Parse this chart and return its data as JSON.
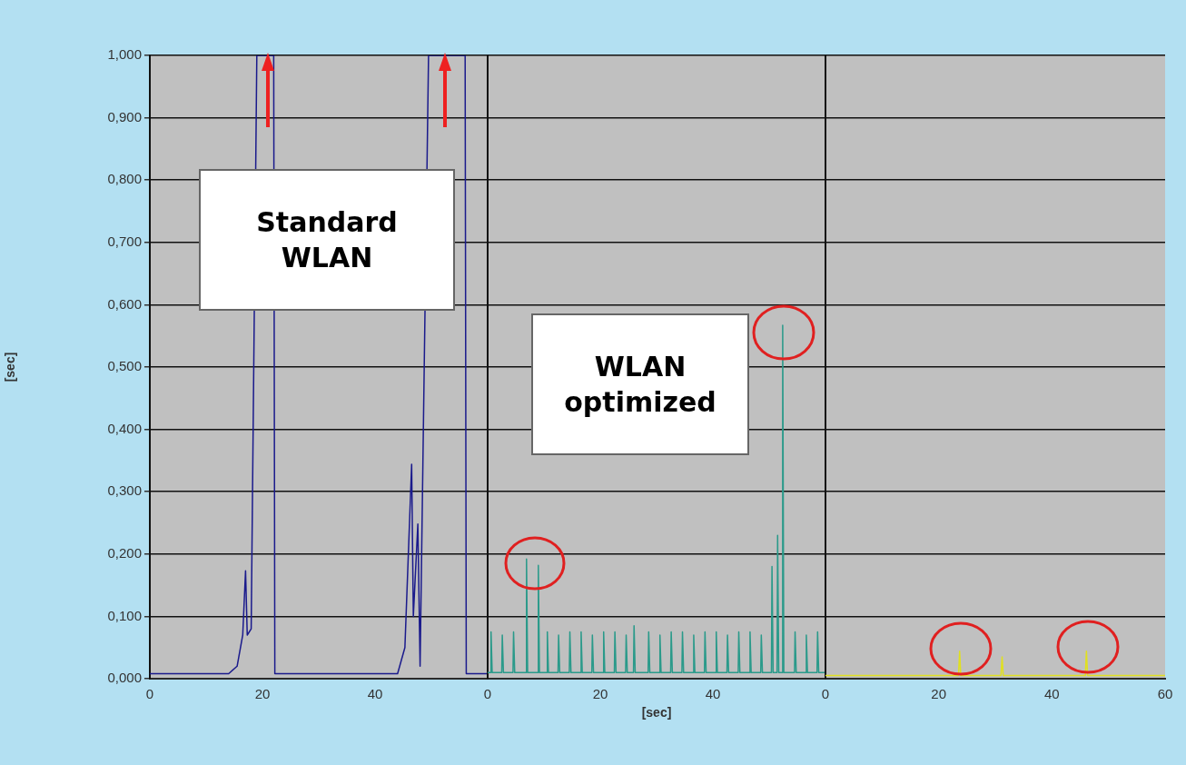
{
  "chart_data": [
    {
      "type": "line",
      "ylabel": "[sec]",
      "annotations": [
        "Standard WLAN"
      ],
      "series": [
        {
          "color": "#1a1a8c",
          "x": [
            0,
            14,
            15.5,
            16.5,
            17,
            17.3,
            18,
            19,
            22,
            22.2,
            44,
            45.3,
            46.2,
            46.5,
            46.8,
            47.6,
            48,
            49.5,
            56,
            56.2,
            60
          ],
          "values": [
            0.008,
            0.008,
            0.02,
            0.07,
            0.173,
            0.07,
            0.08,
            1,
            1,
            0.008,
            0.008,
            0.05,
            0.27,
            0.344,
            0.1,
            0.248,
            0.02,
            1,
            1,
            0.008,
            0.008
          ]
        }
      ],
      "xlim": [
        0,
        60
      ],
      "xticks": [
        0,
        20,
        40
      ],
      "ylim": [
        0,
        1
      ],
      "yticks": [
        {
          "value": 0,
          "label": "0,000"
        },
        {
          "value": 0.1,
          "label": "0,100"
        },
        {
          "value": 0.2,
          "label": "0,200"
        },
        {
          "value": 0.3,
          "label": "0,300"
        },
        {
          "value": 0.4,
          "label": "0,400"
        },
        {
          "value": 0.5,
          "label": "0,500"
        },
        {
          "value": 0.6,
          "label": "0,600"
        },
        {
          "value": 0.7,
          "label": "0,700"
        },
        {
          "value": 0.8,
          "label": "0,800"
        },
        {
          "value": 0.9,
          "label": "0,900"
        },
        {
          "value": 1,
          "label": "1,000"
        }
      ],
      "grid": "y"
    },
    {
      "type": "line",
      "xlabel": "[sec]",
      "annotations": [
        "WLAN optimized"
      ],
      "series": [
        {
          "color": "#2a9a8a",
          "x": [
            0,
            0.5,
            0.6,
            0.8,
            2.5,
            2.6,
            2.8,
            4.5,
            4.6,
            4.8,
            6.8,
            6.9,
            7.1,
            8.9,
            9.0,
            9.2,
            10.5,
            10.6,
            10.8,
            12.5,
            12.6,
            12.8,
            14.5,
            14.6,
            14.8,
            16.5,
            16.6,
            16.8,
            18.5,
            18.6,
            18.8,
            20.5,
            20.6,
            20.8,
            22.5,
            22.6,
            22.8,
            24.5,
            24.6,
            24.8,
            25.9,
            26,
            26.2,
            28.5,
            28.6,
            28.8,
            30.5,
            30.6,
            30.8,
            32.5,
            32.6,
            32.8,
            34.5,
            34.6,
            34.8,
            36.5,
            36.6,
            36.8,
            38.5,
            38.6,
            38.8,
            40.5,
            40.6,
            40.8,
            42.5,
            42.6,
            42.8,
            44.5,
            44.6,
            44.8,
            46.5,
            46.6,
            46.8,
            48.5,
            48.6,
            48.8,
            50.4,
            50.5,
            50.7,
            51.4,
            51.5,
            51.7,
            52.3,
            52.4,
            52.6,
            54.5,
            54.6,
            54.8,
            56.5,
            56.6,
            56.8,
            58.5,
            58.6,
            58.8,
            60
          ],
          "values": [
            0.01,
            0.01,
            0.075,
            0.01,
            0.01,
            0.07,
            0.01,
            0.01,
            0.075,
            0.01,
            0.01,
            0.192,
            0.01,
            0.01,
            0.182,
            0.01,
            0.01,
            0.075,
            0.01,
            0.01,
            0.07,
            0.01,
            0.01,
            0.075,
            0.01,
            0.01,
            0.075,
            0.01,
            0.01,
            0.07,
            0.01,
            0.01,
            0.075,
            0.01,
            0.01,
            0.075,
            0.01,
            0.01,
            0.07,
            0.01,
            0.01,
            0.085,
            0.01,
            0.01,
            0.075,
            0.01,
            0.01,
            0.07,
            0.01,
            0.01,
            0.075,
            0.01,
            0.01,
            0.075,
            0.01,
            0.01,
            0.07,
            0.01,
            0.01,
            0.075,
            0.01,
            0.01,
            0.075,
            0.01,
            0.01,
            0.07,
            0.01,
            0.01,
            0.075,
            0.01,
            0.01,
            0.075,
            0.01,
            0.01,
            0.07,
            0.01,
            0.01,
            0.18,
            0.01,
            0.01,
            0.23,
            0.01,
            0.01,
            0.567,
            0.01,
            0.01,
            0.075,
            0.01,
            0.01,
            0.07,
            0.01,
            0.01,
            0.075,
            0.01,
            0.01
          ]
        }
      ],
      "xlim": [
        0,
        60
      ],
      "xticks": [
        0,
        20,
        40
      ],
      "ylim": [
        0,
        1
      ],
      "yticks": [
        0,
        0.1,
        0.2,
        0.3,
        0.4,
        0.5,
        0.6,
        0.7,
        0.8,
        0.9,
        1
      ],
      "tick_labels": "x",
      "grid": "y"
    },
    {
      "type": "line",
      "series": [
        {
          "color": "#e0e020",
          "x": [
            0,
            23.5,
            23.7,
            23.9,
            31,
            31.2,
            31.4,
            45.9,
            46.1,
            46.3,
            60
          ],
          "values": [
            0.005,
            0.005,
            0.044,
            0.005,
            0.005,
            0.035,
            0.005,
            0.005,
            0.044,
            0.005,
            0.005
          ]
        }
      ],
      "xlim": [
        0,
        60
      ],
      "xticks": [
        0,
        20,
        40,
        60
      ],
      "ylim": [
        0,
        1
      ],
      "yticks": [
        0,
        0.1,
        0.2,
        0.3,
        0.4,
        0.5,
        0.6,
        0.7,
        0.8,
        0.9,
        1
      ],
      "tick_labels": "x",
      "grid": "y"
    }
  ]
}
